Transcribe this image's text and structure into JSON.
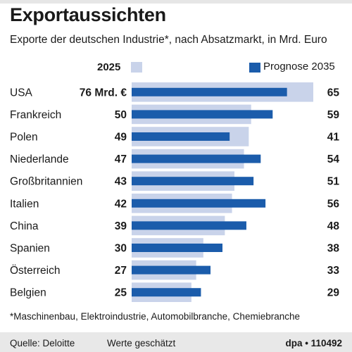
{
  "header": {
    "title": "Exportaussichten",
    "subtitle": "Exporte der deutschen Industrie*, nach Absatzmarkt, in Mrd. Euro"
  },
  "legend": {
    "year_label": "2025",
    "forecast_label": "Prognose 2035"
  },
  "chart_data": {
    "type": "bar",
    "orientation": "horizontal",
    "categories": [
      "USA",
      "Frankreich",
      "Polen",
      "Niederlande",
      "Großbritannien",
      "Italien",
      "China",
      "Spanien",
      "Österreich",
      "Belgien"
    ],
    "series": [
      {
        "name": "2025",
        "values": [
          76,
          50,
          49,
          47,
          43,
          42,
          39,
          30,
          27,
          25
        ],
        "color": "#c9d3ea"
      },
      {
        "name": "Prognose 2035",
        "values": [
          65,
          59,
          41,
          54,
          51,
          56,
          48,
          38,
          33,
          29
        ],
        "color": "#1b5cab"
      }
    ],
    "labels_2025": [
      "76 Mrd. €",
      "50",
      "49",
      "47",
      "43",
      "42",
      "39",
      "30",
      "27",
      "25"
    ],
    "labels_2035": [
      "65",
      "59",
      "41",
      "54",
      "51",
      "56",
      "48",
      "38",
      "33",
      "29"
    ],
    "title": "Exportaussichten",
    "unit": "Mrd. Euro",
    "xlim": [
      0,
      76
    ],
    "grid": false
  },
  "footer": {
    "footnote": "*Maschinenbau, Elektroindustrie, Automobilbranche, Chemiebranche",
    "source": "Quelle: Deloitte",
    "note": "Werte geschätzt",
    "credit": "dpa • 110492"
  }
}
